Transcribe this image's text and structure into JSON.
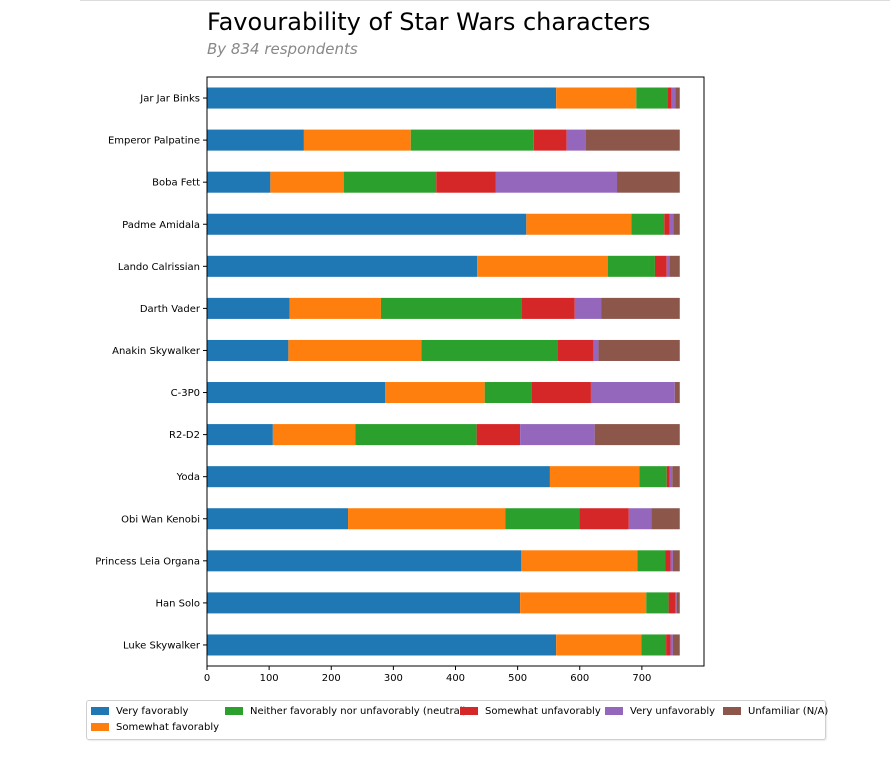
{
  "title": "Favourability of Star Wars characters",
  "subtitle": "By 834 respondents",
  "chart_data": {
    "type": "bar",
    "orientation": "horizontal",
    "stacked": true,
    "categories": [
      "Luke Skywalker",
      "Han Solo",
      "Princess Leia Organa",
      "Obi Wan Kenobi",
      "Yoda",
      "R2-D2",
      "C-3P0",
      "Anakin Skywalker",
      "Darth Vader",
      "Lando Calrissian",
      "Padme Amidala",
      "Boba Fett",
      "Emperor Palpatine",
      "Jar Jar Binks"
    ],
    "series": [
      {
        "name": "Very favorably",
        "color": "#1f77b4",
        "values": [
          562,
          504,
          506,
          227,
          552,
          106,
          287,
          131,
          133,
          435,
          514,
          102,
          156,
          562
        ]
      },
      {
        "name": "Somewhat favorably",
        "color": "#ff7f0e",
        "values": [
          137,
          203,
          187,
          253,
          144,
          133,
          160,
          214,
          147,
          210,
          169,
          118,
          172,
          129
        ]
      },
      {
        "name": "Neither favorably nor unfavorably (neutral)",
        "color": "#2ca02c",
        "values": [
          40,
          36,
          45,
          119,
          44,
          195,
          75,
          220,
          227,
          76,
          53,
          149,
          198,
          50
        ]
      },
      {
        "name": "Somewhat unfavorably",
        "color": "#d62728",
        "values": [
          7,
          11,
          8,
          80,
          5,
          70,
          96,
          57,
          85,
          19,
          9,
          96,
          53,
          7
        ]
      },
      {
        "name": "Very unfavorably",
        "color": "#9467bd",
        "values": [
          4,
          2,
          4,
          36,
          4,
          120,
          135,
          8,
          43,
          4,
          6,
          195,
          31,
          6
        ]
      },
      {
        "name": "Unfamiliar (N/A)",
        "color": "#8c564b",
        "values": [
          11,
          5,
          11,
          46,
          12,
          137,
          8,
          131,
          126,
          17,
          10,
          101,
          151,
          7
        ]
      }
    ],
    "xlim": [
      0,
      800
    ],
    "xticks": [
      0,
      100,
      200,
      300,
      400,
      500,
      600,
      700
    ],
    "xlabel": "",
    "ylabel": "",
    "grid": false,
    "legend_position": "bottom"
  }
}
